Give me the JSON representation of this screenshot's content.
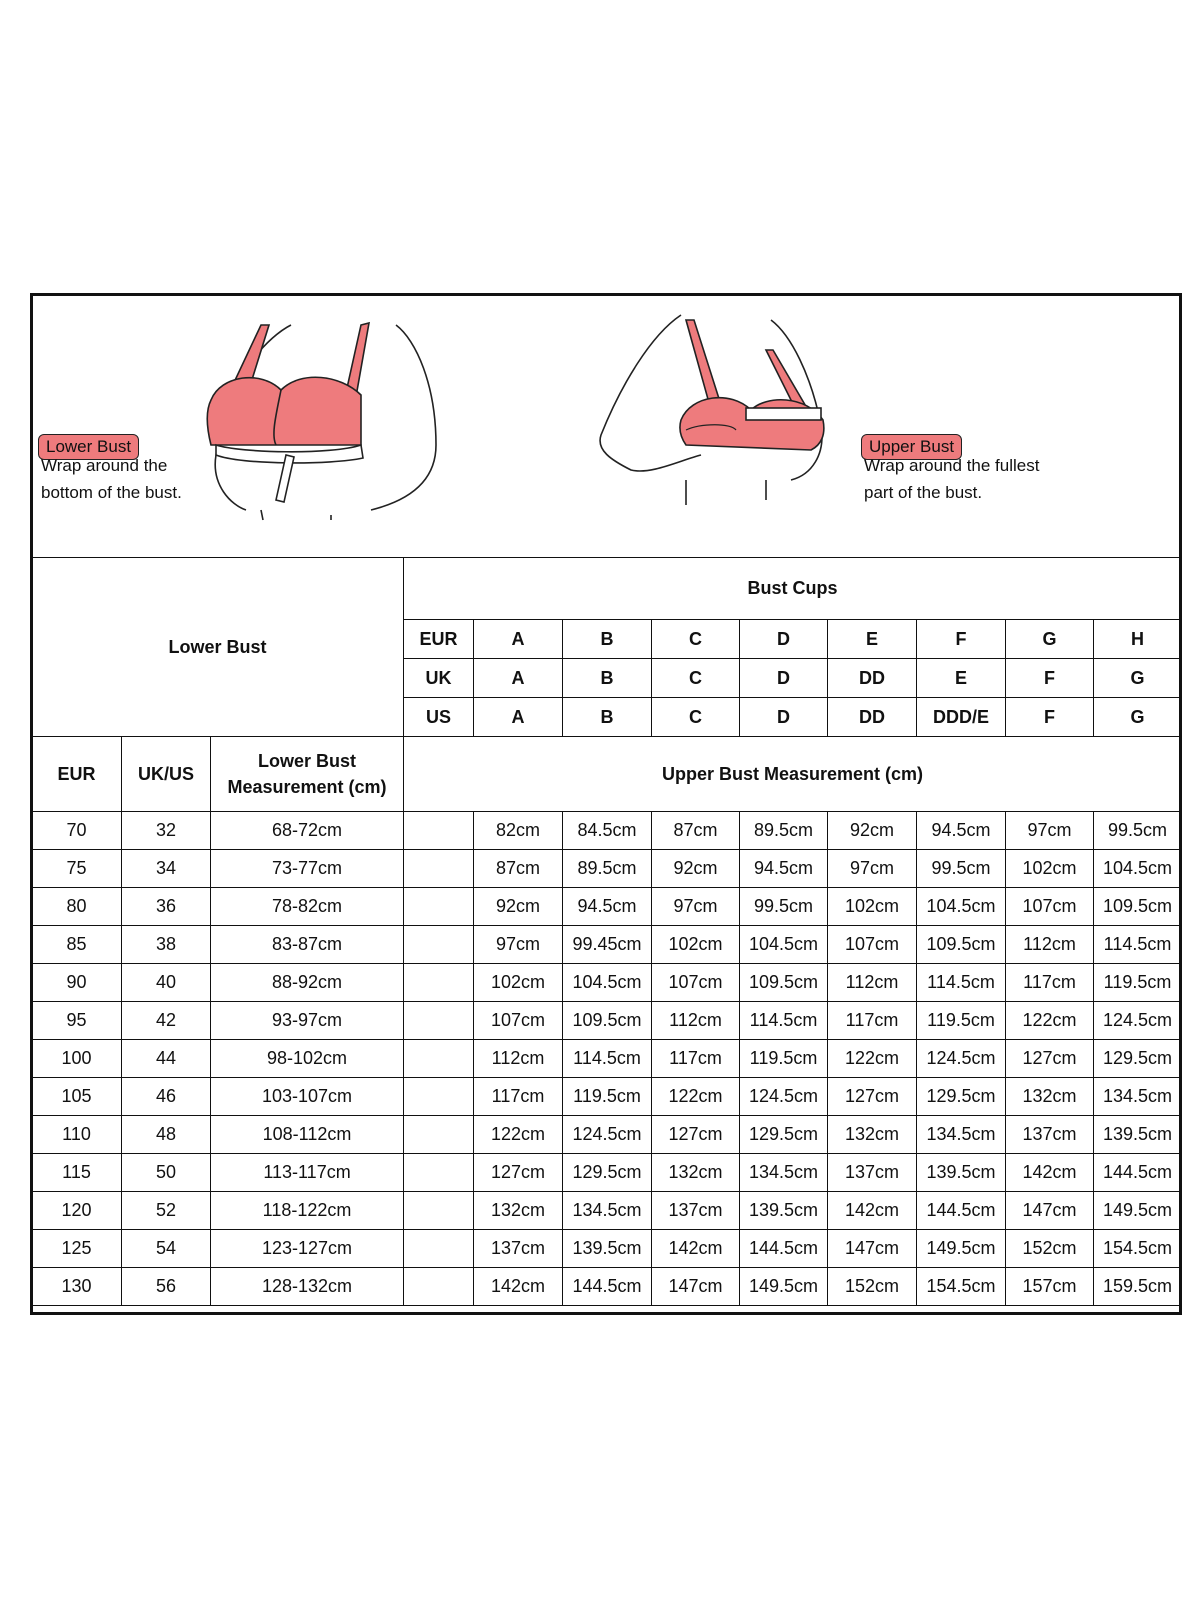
{
  "illustrations": {
    "lower": {
      "badge": "Lower Bust",
      "line1": "Wrap around the",
      "line2": "bottom of the bust."
    },
    "upper": {
      "badge": "Upper Bust",
      "line1": "Wrap around the fullest",
      "line2": "part of the bust."
    },
    "bra_color": "#ee7b7d"
  },
  "table": {
    "lower_bust_header": "Lower Bust",
    "bust_cups_header": "Bust Cups",
    "cup_rows": [
      {
        "label": "EUR",
        "cups": [
          "A",
          "B",
          "C",
          "D",
          "E",
          "F",
          "G",
          "H"
        ]
      },
      {
        "label": "UK",
        "cups": [
          "A",
          "B",
          "C",
          "D",
          "DD",
          "E",
          "F",
          "G"
        ]
      },
      {
        "label": "US",
        "cups": [
          "A",
          "B",
          "C",
          "D",
          "DD",
          "DDD/E",
          "F",
          "G"
        ]
      }
    ],
    "col_headers": {
      "eur": "EUR",
      "ukus": "UK/US",
      "lower_meas_1": "Lower Bust",
      "lower_meas_2": "Measurement (cm)",
      "upper_meas": "Upper Bust Measurement (cm)"
    },
    "rows": [
      {
        "eur": "70",
        "ukus": "32",
        "lower": "68-72cm",
        "upper": [
          "82cm",
          "84.5cm",
          "87cm",
          "89.5cm",
          "92cm",
          "94.5cm",
          "97cm",
          "99.5cm"
        ]
      },
      {
        "eur": "75",
        "ukus": "34",
        "lower": "73-77cm",
        "upper": [
          "87cm",
          "89.5cm",
          "92cm",
          "94.5cm",
          "97cm",
          "99.5cm",
          "102cm",
          "104.5cm"
        ]
      },
      {
        "eur": "80",
        "ukus": "36",
        "lower": "78-82cm",
        "upper": [
          "92cm",
          "94.5cm",
          "97cm",
          "99.5cm",
          "102cm",
          "104.5cm",
          "107cm",
          "109.5cm"
        ]
      },
      {
        "eur": "85",
        "ukus": "38",
        "lower": "83-87cm",
        "upper": [
          "97cm",
          "99.45cm",
          "102cm",
          "104.5cm",
          "107cm",
          "109.5cm",
          "112cm",
          "114.5cm"
        ]
      },
      {
        "eur": "90",
        "ukus": "40",
        "lower": "88-92cm",
        "upper": [
          "102cm",
          "104.5cm",
          "107cm",
          "109.5cm",
          "112cm",
          "114.5cm",
          "117cm",
          "119.5cm"
        ]
      },
      {
        "eur": "95",
        "ukus": "42",
        "lower": "93-97cm",
        "upper": [
          "107cm",
          "109.5cm",
          "112cm",
          "114.5cm",
          "117cm",
          "119.5cm",
          "122cm",
          "124.5cm"
        ]
      },
      {
        "eur": "100",
        "ukus": "44",
        "lower": "98-102cm",
        "upper": [
          "112cm",
          "114.5cm",
          "117cm",
          "119.5cm",
          "122cm",
          "124.5cm",
          "127cm",
          "129.5cm"
        ]
      },
      {
        "eur": "105",
        "ukus": "46",
        "lower": "103-107cm",
        "upper": [
          "117cm",
          "119.5cm",
          "122cm",
          "124.5cm",
          "127cm",
          "129.5cm",
          "132cm",
          "134.5cm"
        ]
      },
      {
        "eur": "110",
        "ukus": "48",
        "lower": "108-112cm",
        "upper": [
          "122cm",
          "124.5cm",
          "127cm",
          "129.5cm",
          "132cm",
          "134.5cm",
          "137cm",
          "139.5cm"
        ]
      },
      {
        "eur": "115",
        "ukus": "50",
        "lower": "113-117cm",
        "upper": [
          "127cm",
          "129.5cm",
          "132cm",
          "134.5cm",
          "137cm",
          "139.5cm",
          "142cm",
          "144.5cm"
        ]
      },
      {
        "eur": "120",
        "ukus": "52",
        "lower": "118-122cm",
        "upper": [
          "132cm",
          "134.5cm",
          "137cm",
          "139.5cm",
          "142cm",
          "144.5cm",
          "147cm",
          "149.5cm"
        ]
      },
      {
        "eur": "125",
        "ukus": "54",
        "lower": "123-127cm",
        "upper": [
          "137cm",
          "139.5cm",
          "142cm",
          "144.5cm",
          "147cm",
          "149.5cm",
          "152cm",
          "154.5cm"
        ]
      },
      {
        "eur": "130",
        "ukus": "56",
        "lower": "128-132cm",
        "upper": [
          "142cm",
          "144.5cm",
          "147cm",
          "149.5cm",
          "152cm",
          "154.5cm",
          "157cm",
          "159.5cm"
        ]
      }
    ]
  }
}
